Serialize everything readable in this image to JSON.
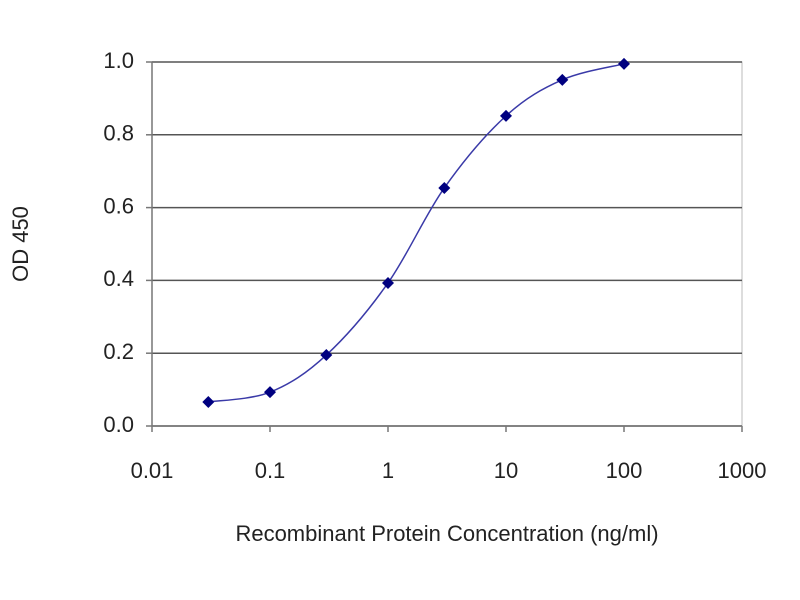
{
  "chart_data": {
    "type": "line",
    "x_label": "Recombinant Protein Concentration (ng/ml)",
    "y_label": "OD 450",
    "x": [
      0.03,
      0.1,
      0.3,
      1,
      3,
      10,
      30,
      100
    ],
    "series": [
      {
        "color": "#000080",
        "values": [
          0.066,
          0.093,
          0.195,
          0.393,
          0.654,
          0.852,
          0.951,
          0.995
        ]
      }
    ],
    "x_log": true,
    "xlim": [
      0.01,
      1000
    ],
    "xticks": [
      0.01,
      0.1,
      1,
      10,
      100,
      1000
    ],
    "ylim": [
      0,
      1
    ],
    "yticks": [
      {
        "value": 0,
        "label": "0.0"
      },
      0.2,
      0.4,
      0.6,
      0.8,
      {
        "value": 1,
        "label": "1.0"
      }
    ],
    "grid": true
  }
}
